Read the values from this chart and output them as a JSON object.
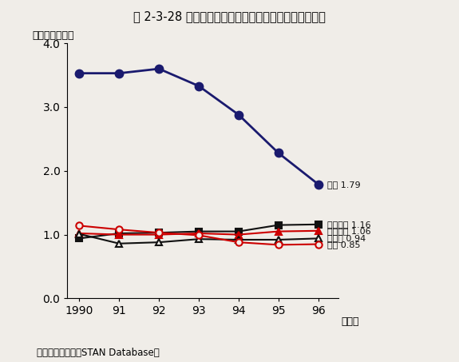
{
  "title": "第 2-3-28 図　主要国のハイテク産業貿易収支比の推移",
  "ylabel": "（輸出／輸入）",
  "xlabel_unit": "（年）",
  "source": "資料：ＯＥＣＤ『STA N Database』",
  "source_display": "資料：ＯＥＣＤ『STAN Database』",
  "years": [
    1990,
    1991,
    1992,
    1993,
    1994,
    1995,
    1996
  ],
  "series": [
    {
      "name": "日本",
      "label_jp": "日本 1.79",
      "values": [
        3.53,
        3.53,
        3.6,
        3.33,
        2.88,
        2.28,
        1.79
      ],
      "color": "#1a1a6e",
      "marker": "o",
      "marker_filled": true,
      "linewidth": 2.0,
      "markersize": 7
    },
    {
      "name": "フランス",
      "label_jp": "フランス 1.16",
      "values": [
        0.94,
        1.02,
        1.03,
        1.05,
        1.05,
        1.15,
        1.16
      ],
      "color": "#111111",
      "marker": "s",
      "marker_filled": true,
      "linewidth": 1.5,
      "markersize": 6
    },
    {
      "name": "イギリス",
      "label_jp": "イギリス 1.06",
      "values": [
        1.02,
        1.0,
        1.0,
        1.02,
        1.0,
        1.05,
        1.06
      ],
      "color": "#cc0000",
      "marker": "^",
      "marker_filled": true,
      "linewidth": 1.5,
      "markersize": 6
    },
    {
      "name": "ドイツ",
      "label_jp": "ドイツ 0.94",
      "values": [
        1.01,
        0.86,
        0.88,
        0.93,
        0.92,
        0.92,
        0.94
      ],
      "color": "#111111",
      "marker": "^",
      "marker_filled": false,
      "linewidth": 1.5,
      "markersize": 6
    },
    {
      "name": "米国",
      "label_jp": "米国 0.85",
      "values": [
        1.14,
        1.08,
        1.03,
        0.99,
        0.88,
        0.84,
        0.85
      ],
      "color": "#cc0000",
      "marker": "o",
      "marker_filled": false,
      "linewidth": 1.5,
      "markersize": 6
    }
  ],
  "ylim": [
    0.0,
    4.0
  ],
  "yticks": [
    0.0,
    1.0,
    2.0,
    3.0,
    4.0
  ],
  "background_color": "#f0ede8"
}
